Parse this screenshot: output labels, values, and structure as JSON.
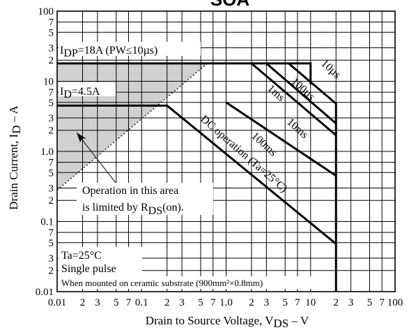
{
  "chart_data": {
    "type": "line",
    "title": "SOA",
    "xlabel": "Drain to Source Voltage, V",
    "xlabel_sub": "DS",
    "xlabel_unit": "– V",
    "ylabel": "Drain Current, I",
    "ylabel_sub": "D",
    "ylabel_unit": "– A",
    "xscale": "log",
    "yscale": "log",
    "xlim": [
      0.01,
      100
    ],
    "ylim": [
      0.01,
      100
    ],
    "grid": true,
    "x_tick_labels": [
      {
        "v": 0.01,
        "t": "0.01"
      },
      {
        "v": 0.02,
        "t": "2"
      },
      {
        "v": 0.03,
        "t": "3"
      },
      {
        "v": 0.05,
        "t": "5"
      },
      {
        "v": 0.07,
        "t": "7"
      },
      {
        "v": 0.1,
        "t": "0.1"
      },
      {
        "v": 0.2,
        "t": "2"
      },
      {
        "v": 0.3,
        "t": "3"
      },
      {
        "v": 0.5,
        "t": "5"
      },
      {
        "v": 0.7,
        "t": "7"
      },
      {
        "v": 1,
        "t": "1.0"
      },
      {
        "v": 2,
        "t": "2"
      },
      {
        "v": 3,
        "t": "3"
      },
      {
        "v": 5,
        "t": "5"
      },
      {
        "v": 7,
        "t": "7"
      },
      {
        "v": 10,
        "t": "10"
      },
      {
        "v": 20,
        "t": "2"
      },
      {
        "v": 30,
        "t": "3"
      },
      {
        "v": 50,
        "t": "5"
      },
      {
        "v": 70,
        "t": "7"
      },
      {
        "v": 100,
        "t": "100"
      }
    ],
    "y_tick_labels": [
      {
        "v": 100,
        "t": "100"
      },
      {
        "v": 70,
        "t": "7"
      },
      {
        "v": 50,
        "t": "5"
      },
      {
        "v": 30,
        "t": "3"
      },
      {
        "v": 20,
        "t": "2"
      },
      {
        "v": 10,
        "t": "10"
      },
      {
        "v": 7,
        "t": "7"
      },
      {
        "v": 5,
        "t": "5"
      },
      {
        "v": 3,
        "t": "3"
      },
      {
        "v": 2,
        "t": "2"
      },
      {
        "v": 1,
        "t": "1.0"
      },
      {
        "v": 0.7,
        "t": "7"
      },
      {
        "v": 0.5,
        "t": "5"
      },
      {
        "v": 0.3,
        "t": "3"
      },
      {
        "v": 0.2,
        "t": "2"
      },
      {
        "v": 0.1,
        "t": "0.1"
      },
      {
        "v": 0.07,
        "t": "7"
      },
      {
        "v": 0.05,
        "t": "5"
      },
      {
        "v": 0.03,
        "t": "3"
      },
      {
        "v": 0.02,
        "t": "2"
      },
      {
        "v": 0.01,
        "t": "0.01"
      }
    ],
    "series": [
      {
        "name": "10µs",
        "points": [
          [
            0.01,
            18
          ],
          [
            10,
            18
          ],
          [
            10,
            9
          ]
        ]
      },
      {
        "name": "100µs",
        "points": [
          [
            5.5,
            18
          ],
          [
            20,
            4.8
          ],
          [
            20,
            0.01
          ]
        ]
      },
      {
        "name": "1ms",
        "points": [
          [
            3,
            18
          ],
          [
            20,
            2.5
          ]
        ]
      },
      {
        "name": "10ms",
        "points": [
          [
            2,
            18
          ],
          [
            20,
            1.7
          ]
        ]
      },
      {
        "name": "100ms",
        "points": [
          [
            1,
            5
          ],
          [
            20,
            0.45
          ]
        ]
      },
      {
        "name": "DC operation",
        "points": [
          [
            0.01,
            4.5
          ],
          [
            0.2,
            4.5
          ],
          [
            20,
            0.048
          ]
        ]
      }
    ],
    "rds_on_limit": [
      [
        0.01,
        0.28
      ],
      [
        0.6,
        18
      ]
    ],
    "rds_area_fill": true,
    "annotations": {
      "idp": "I",
      "idp_sub": "DP",
      "idp_rest": "=18A (PW≤10µs)",
      "id": "I",
      "id_sub": "D",
      "id_rest": "=4.5A",
      "dc": "DC operation (Ta=25°C)",
      "op1": "Operation in this area",
      "op2": "is limited by R",
      "op2_sub": "DS",
      "op2_rest": "(on).",
      "ta": "Ta=25°C",
      "pulse": "Single pulse",
      "mount": "When mounted on ceramic substrate (900mm²×0.8mm)"
    },
    "colors": {
      "line": "#000000",
      "grid": "#000000",
      "shade": "#d0d0d0",
      "background": "#ffffff"
    }
  }
}
